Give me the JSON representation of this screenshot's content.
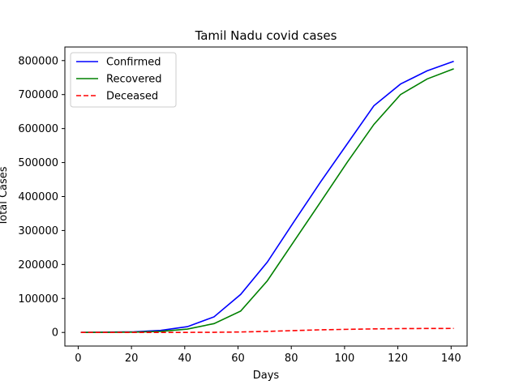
{
  "chart_data": {
    "type": "line",
    "title": "Tamil Nadu covid cases",
    "xlabel": "Days",
    "ylabel": "Total Cases",
    "xlim": [
      -5,
      146
    ],
    "ylim": [
      -40000,
      840000
    ],
    "xticks": [
      0,
      20,
      40,
      60,
      80,
      100,
      120,
      140
    ],
    "xtick_labels": [
      "0",
      "20",
      "40",
      "60",
      "80",
      "100",
      "120",
      "140"
    ],
    "yticks": [
      0,
      100000,
      200000,
      300000,
      400000,
      500000,
      600000,
      700000,
      800000
    ],
    "ytick_labels": [
      "0",
      "100000",
      "200000",
      "300000",
      "400000",
      "500000",
      "600000",
      "700000",
      "800000"
    ],
    "grid": false,
    "legend_position": "top-left",
    "x": [
      1,
      11,
      21,
      31,
      41,
      51,
      61,
      71,
      81,
      91,
      101,
      111,
      121,
      131,
      141
    ],
    "series": [
      {
        "name": "Confirmed",
        "color": "#0000ff",
        "dash": "solid",
        "values": [
          0,
          1000,
          2000,
          6000,
          17000,
          46000,
          112000,
          207000,
          326000,
          443000,
          555000,
          667000,
          731000,
          770000,
          798000
        ]
      },
      {
        "name": "Recovered",
        "color": "#008000",
        "dash": "solid",
        "values": [
          0,
          500,
          1000,
          3000,
          10000,
          26000,
          63000,
          152000,
          268000,
          384000,
          501000,
          612000,
          700000,
          746000,
          776000
        ]
      },
      {
        "name": "Deceased",
        "color": "#ff0000",
        "dash": "dashed",
        "values": [
          0,
          0,
          0,
          100,
          200,
          500,
          1400,
          3200,
          5500,
          7800,
          9200,
          10500,
          11300,
          11700,
          11900
        ]
      }
    ]
  }
}
